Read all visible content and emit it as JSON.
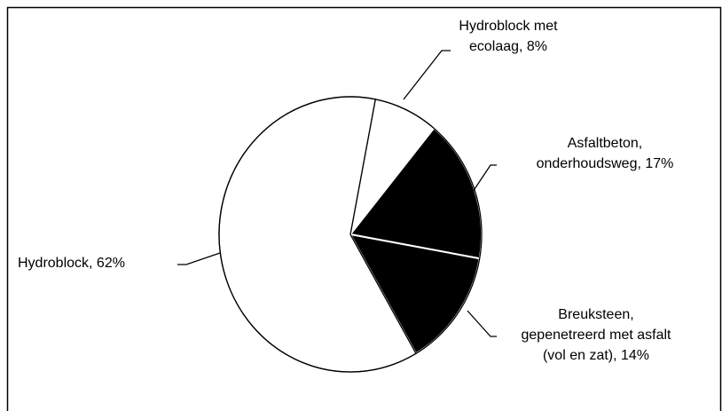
{
  "chart_data": {
    "type": "pie",
    "labels": [
      [
        "Hydroblock met",
        "ecolaag, 8%"
      ],
      [
        "Asfaltbeton,",
        "onderhoudsweg, 17%"
      ],
      [
        "Breuksteen,",
        "gepenetreerd met asfalt",
        "(vol en zat), 14%"
      ],
      [
        "Hydroblock, 62%"
      ]
    ],
    "values": [
      8,
      17,
      14,
      62
    ],
    "colors": [
      "#ffffff",
      "#000000",
      "#000000",
      "#ffffff"
    ]
  }
}
